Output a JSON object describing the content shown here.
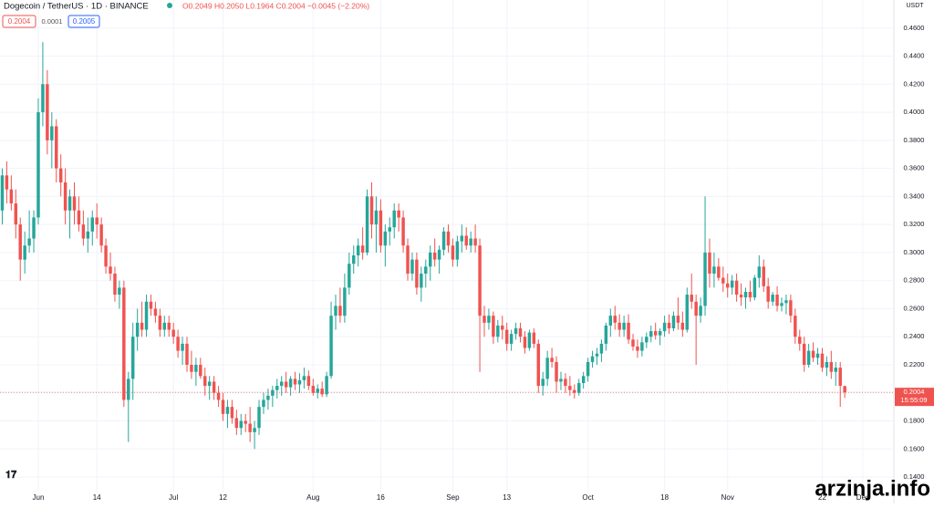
{
  "header": {
    "title": "Dogecoin / TetherUS · 1D · BINANCE",
    "ohlc": "O0.2049 H0.2050 L0.1964 C0.2004 −0.0045 (−2.20%)",
    "bid": "0.2004",
    "spread": "0.0001",
    "ask": "0.2005"
  },
  "price_tag": {
    "price": "0.2004",
    "countdown": "15:55:09"
  },
  "watermark": "arzinja.info",
  "chart_data": {
    "type": "candlestick",
    "y_axis_label": "USDT",
    "up_color": "#26a69a",
    "down_color": "#ef5350",
    "xlim": [
      -0.5,
      197.9
    ],
    "xticks": [
      {
        "value": 8,
        "label": "Jun"
      },
      {
        "value": 21,
        "label": "14"
      },
      {
        "value": 38,
        "label": "Jul"
      },
      {
        "value": 49,
        "label": "12"
      },
      {
        "value": 69,
        "label": "Aug"
      },
      {
        "value": 84,
        "label": "16"
      },
      {
        "value": 100,
        "label": "Sep"
      },
      {
        "value": 112,
        "label": "13"
      },
      {
        "value": 130,
        "label": "Oct"
      },
      {
        "value": 147,
        "label": "18"
      },
      {
        "value": 161,
        "label": "Nov"
      },
      {
        "value": 182,
        "label": "22"
      },
      {
        "value": 191,
        "label": "Dec"
      }
    ],
    "ylim": [
      0.129,
      0.48
    ],
    "yticks": [
      {
        "value": 0.14,
        "label": "0.1400"
      },
      {
        "value": 0.16,
        "label": "0.1600"
      },
      {
        "value": 0.18,
        "label": "0.1800"
      },
      {
        "value": 0.2,
        "label": "0.2000"
      },
      {
        "value": 0.22,
        "label": "0.2200"
      },
      {
        "value": 0.24,
        "label": "0.2400"
      },
      {
        "value": 0.26,
        "label": "0.2600"
      },
      {
        "value": 0.28,
        "label": "0.2800"
      },
      {
        "value": 0.3,
        "label": "0.3000"
      },
      {
        "value": 0.32,
        "label": "0.3200"
      },
      {
        "value": 0.34,
        "label": "0.3400"
      },
      {
        "value": 0.36,
        "label": "0.3600"
      },
      {
        "value": 0.38,
        "label": "0.3800"
      },
      {
        "value": 0.4,
        "label": "0.4000"
      },
      {
        "value": 0.42,
        "label": "0.4200"
      },
      {
        "value": 0.44,
        "label": "0.4400"
      },
      {
        "value": 0.46,
        "label": "0.4600"
      }
    ],
    "x": [
      0,
      1,
      2,
      3,
      4,
      5,
      6,
      7,
      8,
      9,
      10,
      11,
      12,
      13,
      14,
      15,
      16,
      17,
      18,
      19,
      20,
      21,
      22,
      23,
      24,
      25,
      26,
      27,
      28,
      29,
      30,
      31,
      32,
      33,
      34,
      35,
      36,
      37,
      38,
      39,
      40,
      41,
      42,
      43,
      44,
      45,
      46,
      47,
      48,
      49,
      50,
      51,
      52,
      53,
      54,
      55,
      56,
      57,
      58,
      59,
      60,
      61,
      62,
      63,
      64,
      65,
      66,
      67,
      68,
      69,
      70,
      71,
      72,
      73,
      74,
      75,
      76,
      77,
      78,
      79,
      80,
      81,
      82,
      83,
      84,
      85,
      86,
      87,
      88,
      89,
      90,
      91,
      92,
      93,
      94,
      95,
      96,
      97,
      98,
      99,
      100,
      101,
      102,
      103,
      104,
      105,
      106,
      107,
      108,
      109,
      110,
      111,
      112,
      113,
      114,
      115,
      116,
      117,
      118,
      119,
      120,
      121,
      122,
      123,
      124,
      125,
      126,
      127,
      128,
      129,
      130,
      131,
      132,
      133,
      134,
      135,
      136,
      137,
      138,
      139,
      140,
      141,
      142,
      143,
      144,
      145,
      146,
      147,
      148,
      149,
      150,
      151,
      152,
      153,
      154,
      155,
      156,
      157,
      158,
      159,
      160,
      161,
      162,
      163,
      164,
      165,
      166,
      167,
      168,
      169,
      170,
      171,
      172,
      173,
      174,
      175,
      176,
      177,
      178,
      179,
      180,
      181,
      182,
      183,
      184,
      185,
      186,
      187
    ],
    "ohlc": [
      [
        0.33,
        0.36,
        0.32,
        0.355
      ],
      [
        0.355,
        0.365,
        0.335,
        0.345
      ],
      [
        0.345,
        0.355,
        0.33,
        0.335
      ],
      [
        0.335,
        0.345,
        0.31,
        0.32
      ],
      [
        0.32,
        0.325,
        0.28,
        0.295
      ],
      [
        0.295,
        0.315,
        0.285,
        0.305
      ],
      [
        0.305,
        0.33,
        0.3,
        0.31
      ],
      [
        0.31,
        0.33,
        0.3,
        0.325
      ],
      [
        0.325,
        0.41,
        0.32,
        0.4
      ],
      [
        0.4,
        0.45,
        0.39,
        0.42
      ],
      [
        0.42,
        0.43,
        0.37,
        0.38
      ],
      [
        0.38,
        0.4,
        0.36,
        0.39
      ],
      [
        0.39,
        0.395,
        0.35,
        0.36
      ],
      [
        0.36,
        0.37,
        0.34,
        0.35
      ],
      [
        0.35,
        0.36,
        0.32,
        0.33
      ],
      [
        0.33,
        0.345,
        0.31,
        0.34
      ],
      [
        0.34,
        0.35,
        0.32,
        0.33
      ],
      [
        0.33,
        0.34,
        0.315,
        0.32
      ],
      [
        0.32,
        0.33,
        0.305,
        0.31
      ],
      [
        0.31,
        0.325,
        0.3,
        0.315
      ],
      [
        0.315,
        0.33,
        0.305,
        0.325
      ],
      [
        0.325,
        0.335,
        0.31,
        0.32
      ],
      [
        0.32,
        0.325,
        0.3,
        0.305
      ],
      [
        0.305,
        0.31,
        0.285,
        0.29
      ],
      [
        0.29,
        0.3,
        0.28,
        0.285
      ],
      [
        0.285,
        0.29,
        0.265,
        0.27
      ],
      [
        0.27,
        0.28,
        0.26,
        0.275
      ],
      [
        0.275,
        0.28,
        0.19,
        0.195
      ],
      [
        0.195,
        0.215,
        0.165,
        0.21
      ],
      [
        0.21,
        0.25,
        0.195,
        0.24
      ],
      [
        0.24,
        0.26,
        0.23,
        0.25
      ],
      [
        0.25,
        0.265,
        0.24,
        0.245
      ],
      [
        0.245,
        0.27,
        0.24,
        0.265
      ],
      [
        0.265,
        0.27,
        0.255,
        0.26
      ],
      [
        0.26,
        0.265,
        0.25,
        0.255
      ],
      [
        0.255,
        0.26,
        0.24,
        0.245
      ],
      [
        0.245,
        0.255,
        0.24,
        0.25
      ],
      [
        0.25,
        0.255,
        0.24,
        0.245
      ],
      [
        0.245,
        0.25,
        0.235,
        0.24
      ],
      [
        0.24,
        0.245,
        0.225,
        0.23
      ],
      [
        0.23,
        0.24,
        0.22,
        0.235
      ],
      [
        0.235,
        0.24,
        0.215,
        0.22
      ],
      [
        0.22,
        0.23,
        0.21,
        0.215
      ],
      [
        0.215,
        0.225,
        0.205,
        0.22
      ],
      [
        0.22,
        0.225,
        0.21,
        0.212
      ],
      [
        0.212,
        0.218,
        0.198,
        0.205
      ],
      [
        0.205,
        0.212,
        0.195,
        0.208
      ],
      [
        0.208,
        0.212,
        0.195,
        0.2
      ],
      [
        0.2,
        0.205,
        0.19,
        0.195
      ],
      [
        0.195,
        0.2,
        0.18,
        0.185
      ],
      [
        0.185,
        0.195,
        0.175,
        0.19
      ],
      [
        0.19,
        0.195,
        0.178,
        0.182
      ],
      [
        0.182,
        0.188,
        0.17,
        0.175
      ],
      [
        0.175,
        0.185,
        0.17,
        0.18
      ],
      [
        0.18,
        0.185,
        0.172,
        0.178
      ],
      [
        0.178,
        0.19,
        0.165,
        0.172
      ],
      [
        0.172,
        0.18,
        0.16,
        0.175
      ],
      [
        0.175,
        0.195,
        0.17,
        0.19
      ],
      [
        0.19,
        0.2,
        0.185,
        0.195
      ],
      [
        0.195,
        0.203,
        0.188,
        0.198
      ],
      [
        0.198,
        0.205,
        0.19,
        0.202
      ],
      [
        0.202,
        0.21,
        0.196,
        0.205
      ],
      [
        0.205,
        0.212,
        0.198,
        0.208
      ],
      [
        0.208,
        0.215,
        0.2,
        0.204
      ],
      [
        0.204,
        0.212,
        0.198,
        0.21
      ],
      [
        0.21,
        0.215,
        0.202,
        0.206
      ],
      [
        0.206,
        0.214,
        0.2,
        0.209
      ],
      [
        0.209,
        0.218,
        0.203,
        0.212
      ],
      [
        0.212,
        0.216,
        0.202,
        0.205
      ],
      [
        0.205,
        0.21,
        0.198,
        0.2
      ],
      [
        0.2,
        0.206,
        0.196,
        0.203
      ],
      [
        0.203,
        0.208,
        0.197,
        0.199
      ],
      [
        0.199,
        0.215,
        0.197,
        0.212
      ],
      [
        0.212,
        0.265,
        0.21,
        0.255
      ],
      [
        0.255,
        0.27,
        0.245,
        0.262
      ],
      [
        0.262,
        0.275,
        0.25,
        0.255
      ],
      [
        0.255,
        0.285,
        0.25,
        0.275
      ],
      [
        0.275,
        0.3,
        0.27,
        0.292
      ],
      [
        0.292,
        0.305,
        0.285,
        0.298
      ],
      [
        0.298,
        0.31,
        0.29,
        0.305
      ],
      [
        0.305,
        0.318,
        0.295,
        0.3
      ],
      [
        0.3,
        0.345,
        0.298,
        0.34
      ],
      [
        0.34,
        0.35,
        0.31,
        0.32
      ],
      [
        0.32,
        0.34,
        0.3,
        0.33
      ],
      [
        0.33,
        0.338,
        0.3,
        0.305
      ],
      [
        0.305,
        0.32,
        0.29,
        0.315
      ],
      [
        0.315,
        0.325,
        0.305,
        0.318
      ],
      [
        0.318,
        0.335,
        0.31,
        0.33
      ],
      [
        0.33,
        0.335,
        0.315,
        0.325
      ],
      [
        0.325,
        0.33,
        0.3,
        0.305
      ],
      [
        0.305,
        0.31,
        0.28,
        0.285
      ],
      [
        0.285,
        0.3,
        0.28,
        0.295
      ],
      [
        0.295,
        0.3,
        0.27,
        0.275
      ],
      [
        0.275,
        0.29,
        0.265,
        0.285
      ],
      [
        0.285,
        0.295,
        0.275,
        0.29
      ],
      [
        0.29,
        0.305,
        0.28,
        0.3
      ],
      [
        0.3,
        0.31,
        0.29,
        0.295
      ],
      [
        0.295,
        0.305,
        0.285,
        0.302
      ],
      [
        0.302,
        0.318,
        0.298,
        0.315
      ],
      [
        0.315,
        0.32,
        0.3,
        0.305
      ],
      [
        0.305,
        0.31,
        0.29,
        0.295
      ],
      [
        0.295,
        0.312,
        0.29,
        0.308
      ],
      [
        0.308,
        0.32,
        0.3,
        0.312
      ],
      [
        0.312,
        0.318,
        0.302,
        0.305
      ],
      [
        0.305,
        0.315,
        0.3,
        0.31
      ],
      [
        0.31,
        0.32,
        0.3,
        0.305
      ],
      [
        0.305,
        0.31,
        0.215,
        0.255
      ],
      [
        0.255,
        0.262,
        0.24,
        0.25
      ],
      [
        0.25,
        0.26,
        0.245,
        0.255
      ],
      [
        0.255,
        0.258,
        0.235,
        0.24
      ],
      [
        0.24,
        0.252,
        0.236,
        0.248
      ],
      [
        0.248,
        0.255,
        0.238,
        0.245
      ],
      [
        0.245,
        0.25,
        0.23,
        0.235
      ],
      [
        0.235,
        0.245,
        0.23,
        0.242
      ],
      [
        0.242,
        0.25,
        0.238,
        0.246
      ],
      [
        0.246,
        0.25,
        0.236,
        0.24
      ],
      [
        0.24,
        0.244,
        0.228,
        0.232
      ],
      [
        0.232,
        0.245,
        0.23,
        0.243
      ],
      [
        0.243,
        0.246,
        0.232,
        0.235
      ],
      [
        0.235,
        0.238,
        0.2,
        0.205
      ],
      [
        0.205,
        0.215,
        0.198,
        0.21
      ],
      [
        0.21,
        0.23,
        0.205,
        0.225
      ],
      [
        0.225,
        0.232,
        0.218,
        0.222
      ],
      [
        0.222,
        0.226,
        0.2,
        0.208
      ],
      [
        0.208,
        0.215,
        0.202,
        0.21
      ],
      [
        0.21,
        0.214,
        0.2,
        0.205
      ],
      [
        0.205,
        0.212,
        0.198,
        0.202
      ],
      [
        0.202,
        0.206,
        0.196,
        0.2
      ],
      [
        0.2,
        0.21,
        0.198,
        0.207
      ],
      [
        0.207,
        0.215,
        0.203,
        0.212
      ],
      [
        0.212,
        0.225,
        0.208,
        0.222
      ],
      [
        0.222,
        0.23,
        0.218,
        0.226
      ],
      [
        0.226,
        0.232,
        0.22,
        0.228
      ],
      [
        0.228,
        0.238,
        0.222,
        0.235
      ],
      [
        0.235,
        0.25,
        0.23,
        0.248
      ],
      [
        0.248,
        0.26,
        0.24,
        0.255
      ],
      [
        0.255,
        0.262,
        0.245,
        0.25
      ],
      [
        0.25,
        0.256,
        0.24,
        0.245
      ],
      [
        0.245,
        0.255,
        0.24,
        0.25
      ],
      [
        0.25,
        0.256,
        0.235,
        0.238
      ],
      [
        0.238,
        0.242,
        0.23,
        0.233
      ],
      [
        0.233,
        0.238,
        0.225,
        0.23
      ],
      [
        0.23,
        0.24,
        0.226,
        0.236
      ],
      [
        0.236,
        0.243,
        0.232,
        0.24
      ],
      [
        0.24,
        0.248,
        0.236,
        0.244
      ],
      [
        0.244,
        0.25,
        0.238,
        0.241
      ],
      [
        0.241,
        0.246,
        0.234,
        0.244
      ],
      [
        0.244,
        0.255,
        0.24,
        0.25
      ],
      [
        0.25,
        0.256,
        0.242,
        0.246
      ],
      [
        0.246,
        0.258,
        0.244,
        0.255
      ],
      [
        0.255,
        0.268,
        0.245,
        0.25
      ],
      [
        0.25,
        0.258,
        0.24,
        0.245
      ],
      [
        0.245,
        0.275,
        0.243,
        0.27
      ],
      [
        0.27,
        0.285,
        0.26,
        0.265
      ],
      [
        0.265,
        0.27,
        0.22,
        0.255
      ],
      [
        0.255,
        0.268,
        0.25,
        0.262
      ],
      [
        0.262,
        0.34,
        0.255,
        0.3
      ],
      [
        0.3,
        0.31,
        0.275,
        0.285
      ],
      [
        0.285,
        0.3,
        0.275,
        0.29
      ],
      [
        0.29,
        0.296,
        0.28,
        0.282
      ],
      [
        0.282,
        0.29,
        0.272,
        0.278
      ],
      [
        0.278,
        0.285,
        0.268,
        0.275
      ],
      [
        0.275,
        0.284,
        0.27,
        0.28
      ],
      [
        0.28,
        0.285,
        0.265,
        0.27
      ],
      [
        0.27,
        0.278,
        0.262,
        0.268
      ],
      [
        0.268,
        0.275,
        0.26,
        0.272
      ],
      [
        0.272,
        0.28,
        0.265,
        0.268
      ],
      [
        0.268,
        0.284,
        0.266,
        0.282
      ],
      [
        0.282,
        0.298,
        0.275,
        0.29
      ],
      [
        0.29,
        0.295,
        0.272,
        0.276
      ],
      [
        0.276,
        0.282,
        0.26,
        0.265
      ],
      [
        0.265,
        0.272,
        0.262,
        0.27
      ],
      [
        0.27,
        0.276,
        0.258,
        0.262
      ],
      [
        0.262,
        0.268,
        0.258,
        0.264
      ],
      [
        0.264,
        0.27,
        0.256,
        0.266
      ],
      [
        0.266,
        0.27,
        0.25,
        0.255
      ],
      [
        0.255,
        0.26,
        0.235,
        0.24
      ],
      [
        0.24,
        0.245,
        0.23,
        0.235
      ],
      [
        0.235,
        0.24,
        0.215,
        0.22
      ],
      [
        0.22,
        0.235,
        0.218,
        0.23
      ],
      [
        0.23,
        0.236,
        0.222,
        0.225
      ],
      [
        0.225,
        0.232,
        0.22,
        0.228
      ],
      [
        0.228,
        0.232,
        0.215,
        0.218
      ],
      [
        0.218,
        0.226,
        0.212,
        0.222
      ],
      [
        0.222,
        0.23,
        0.21,
        0.215
      ],
      [
        0.215,
        0.222,
        0.205,
        0.218
      ],
      [
        0.218,
        0.222,
        0.19,
        0.205
      ],
      [
        0.2049,
        0.205,
        0.1964,
        0.2004
      ]
    ]
  }
}
